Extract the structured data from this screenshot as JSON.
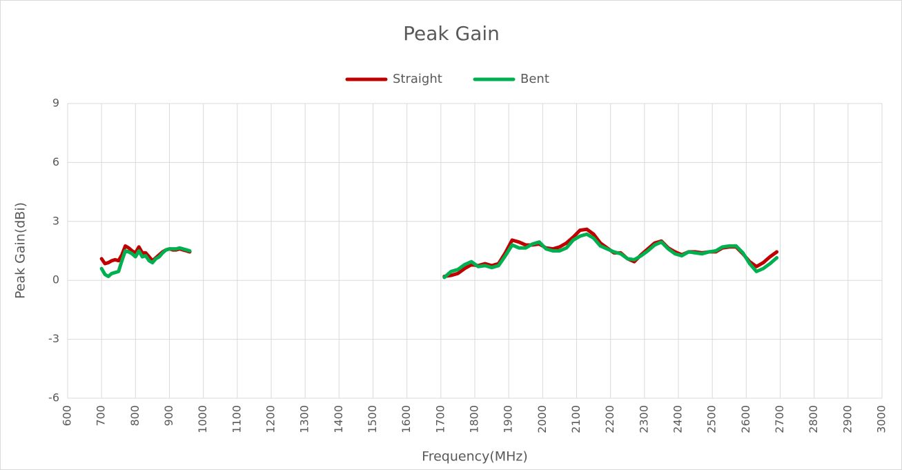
{
  "chart_data": {
    "type": "line",
    "title": "Peak Gain",
    "xlabel": "Frequency(MHz)",
    "ylabel": "Peak Gain(dBi)",
    "x": [
      700,
      710,
      720,
      730,
      740,
      750,
      760,
      770,
      780,
      790,
      800,
      810,
      820,
      830,
      840,
      850,
      860,
      870,
      880,
      890,
      900,
      910,
      920,
      930,
      940,
      950,
      960,
      1300,
      1710,
      1730,
      1750,
      1770,
      1790,
      1810,
      1830,
      1850,
      1870,
      1890,
      1910,
      1930,
      1950,
      1970,
      1990,
      2010,
      2030,
      2050,
      2070,
      2090,
      2110,
      2130,
      2150,
      2170,
      2190,
      2210,
      2230,
      2250,
      2270,
      2290,
      2310,
      2330,
      2350,
      2370,
      2390,
      2410,
      2430,
      2450,
      2470,
      2490,
      2510,
      2530,
      2550,
      2570,
      2590,
      2610,
      2630,
      2650,
      2670,
      2690
    ],
    "series": [
      {
        "name": "Straight",
        "color": "#c00000",
        "values": [
          1.1,
          0.85,
          0.9,
          1.0,
          1.05,
          1.0,
          1.3,
          1.75,
          1.65,
          1.5,
          1.4,
          1.7,
          1.4,
          1.4,
          1.2,
          1.0,
          1.15,
          1.3,
          1.45,
          1.55,
          1.6,
          1.55,
          1.55,
          1.6,
          1.55,
          1.5,
          1.45,
          null,
          0.2,
          0.25,
          0.35,
          0.6,
          0.8,
          0.75,
          0.85,
          0.75,
          0.85,
          1.4,
          2.05,
          1.95,
          1.8,
          1.8,
          1.85,
          1.65,
          1.6,
          1.7,
          1.9,
          2.2,
          2.55,
          2.6,
          2.35,
          1.9,
          1.65,
          1.4,
          1.4,
          1.1,
          0.95,
          1.3,
          1.6,
          1.9,
          2.0,
          1.65,
          1.45,
          1.3,
          1.45,
          1.45,
          1.4,
          1.45,
          1.45,
          1.65,
          1.7,
          1.7,
          1.35,
          0.95,
          0.7,
          0.9,
          1.2,
          1.45
        ]
      },
      {
        "name": "Bent",
        "color": "#00b050",
        "values": [
          0.6,
          0.3,
          0.2,
          0.35,
          0.4,
          0.45,
          1.0,
          1.5,
          1.45,
          1.35,
          1.2,
          1.5,
          1.2,
          1.25,
          1.0,
          0.9,
          1.1,
          1.2,
          1.4,
          1.55,
          1.6,
          1.6,
          1.6,
          1.65,
          1.6,
          1.55,
          1.5,
          null,
          0.15,
          0.45,
          0.55,
          0.8,
          0.95,
          0.7,
          0.75,
          0.65,
          0.75,
          1.25,
          1.8,
          1.65,
          1.65,
          1.85,
          1.95,
          1.6,
          1.5,
          1.5,
          1.65,
          2.05,
          2.25,
          2.35,
          2.15,
          1.75,
          1.6,
          1.45,
          1.35,
          1.1,
          1.05,
          1.25,
          1.5,
          1.8,
          1.95,
          1.6,
          1.35,
          1.25,
          1.45,
          1.4,
          1.35,
          1.45,
          1.5,
          1.7,
          1.75,
          1.75,
          1.4,
          0.85,
          0.45,
          0.6,
          0.85,
          1.15
        ]
      }
    ],
    "xlim": [
      600,
      3000
    ],
    "xticks": [
      600,
      700,
      800,
      900,
      1000,
      1100,
      1200,
      1300,
      1400,
      1500,
      1600,
      1700,
      1800,
      1900,
      2000,
      2100,
      2200,
      2300,
      2400,
      2500,
      2600,
      2700,
      2800,
      2900,
      3000
    ],
    "ylim": [
      -6,
      9
    ],
    "yticks": [
      -6,
      -3,
      0,
      3,
      6,
      9
    ],
    "grid": true,
    "legend": "top"
  }
}
